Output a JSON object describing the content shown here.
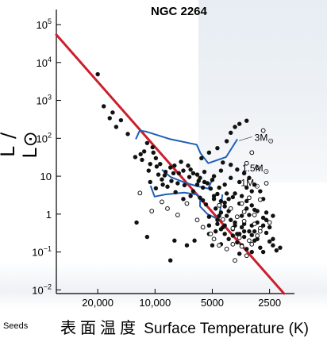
{
  "chart_data": {
    "type": "scatter",
    "title": "NGC 2264",
    "ylabel": "L / L⊙",
    "xlabel_cjk": "表面温度",
    "xlabel": "Surface Temperature  (K)",
    "x_scale": "log",
    "x_direction": "decreasing",
    "xlim": [
      33000,
      1850
    ],
    "y_scale": "log",
    "ylim": [
      0.008,
      250000
    ],
    "x_ticks": [
      {
        "value": 20000,
        "label": "20,000"
      },
      {
        "value": 10000,
        "label": "10,000"
      },
      {
        "value": 5000,
        "label": "5000"
      },
      {
        "value": 2500,
        "label": "2500"
      }
    ],
    "y_ticks": [
      {
        "value": 100000,
        "label": "10",
        "sup": "5"
      },
      {
        "value": 10000,
        "label": "10",
        "sup": "4"
      },
      {
        "value": 1000,
        "label": "10",
        "sup": "3"
      },
      {
        "value": 100,
        "label": "10",
        "sup": "2"
      },
      {
        "value": 10,
        "label": "10",
        "sup": ""
      },
      {
        "value": 1,
        "label": "1",
        "sup": ""
      },
      {
        "value": 0.1,
        "label": "10",
        "sup": "−1"
      },
      {
        "value": 0.01,
        "label": "10",
        "sup": "−2"
      }
    ],
    "main_sequence": {
      "color": "#cc1f2d",
      "points": [
        [
          33000,
          54000
        ],
        [
          2100,
          0.008
        ]
      ]
    },
    "tracks": [
      {
        "name": "3M",
        "color": "#1f5fb8",
        "points": [
          [
            12620,
            95
          ],
          [
            12040,
            160
          ],
          [
            11100,
            150
          ],
          [
            8310,
            95
          ],
          [
            6040,
            68
          ],
          [
            5760,
            40
          ],
          [
            5250,
            22
          ],
          [
            4230,
            32
          ],
          [
            3690,
            95
          ]
        ],
        "label_at": [
          3000,
          110
        ]
      },
      {
        "name": "1.5M",
        "color": "#1f5fb8",
        "points": [
          [
            9200,
            15
          ],
          [
            8310,
            9.6
          ],
          [
            7030,
            6.9
          ],
          [
            6050,
            5.5
          ],
          [
            5250,
            4.7
          ],
          [
            4870,
            11
          ]
        ],
        "label_at": [
          3490,
          17
        ]
      },
      {
        "name": "1M",
        "color": "#1f5fb8",
        "points": [
          [
            10550,
            5.6
          ],
          [
            10050,
            2.9
          ],
          [
            8850,
            3.3
          ],
          [
            7020,
            3.7
          ],
          [
            6060,
            3.3
          ],
          [
            5790,
            2.6
          ],
          [
            5800,
            1.6
          ],
          [
            5300,
            1.0
          ],
          [
            4620,
            0.72
          ],
          [
            4420,
            3.3
          ]
        ],
        "label_at": [
          3540,
          7
        ]
      }
    ],
    "filled_points": [
      [
        20000,
        4900
      ],
      [
        18600,
        700
      ],
      [
        16700,
        480
      ],
      [
        17300,
        340
      ],
      [
        15100,
        300
      ],
      [
        13900,
        130
      ],
      [
        16000,
        200
      ],
      [
        11000,
        75
      ],
      [
        10300,
        58
      ],
      [
        11400,
        45
      ],
      [
        9900,
        30
      ],
      [
        10200,
        42
      ],
      [
        9400,
        21
      ],
      [
        10800,
        14
      ],
      [
        9800,
        18
      ],
      [
        8800,
        13
      ],
      [
        8300,
        17
      ],
      [
        7900,
        19
      ],
      [
        7100,
        14
      ],
      [
        6300,
        12
      ],
      [
        5800,
        9
      ],
      [
        5500,
        7
      ],
      [
        6000,
        6
      ],
      [
        5100,
        4.7
      ],
      [
        4900,
        3
      ],
      [
        4500,
        2.2
      ],
      [
        4300,
        1.6
      ],
      [
        4100,
        1.2
      ],
      [
        4600,
        0.9
      ],
      [
        4000,
        0.7
      ],
      [
        3800,
        0.5
      ],
      [
        3900,
        0.4
      ],
      [
        3600,
        0.3
      ],
      [
        3400,
        0.25
      ],
      [
        3200,
        0.35
      ],
      [
        3000,
        0.2
      ],
      [
        3500,
        0.15
      ],
      [
        3700,
        0.18
      ],
      [
        4100,
        0.22
      ],
      [
        4300,
        0.3
      ],
      [
        3900,
        0.27
      ],
      [
        3300,
        0.12
      ],
      [
        2900,
        0.22
      ],
      [
        3100,
        0.28
      ],
      [
        4700,
        0.55
      ],
      [
        4400,
        0.45
      ],
      [
        4800,
        0.35
      ],
      [
        5200,
        0.5
      ],
      [
        5600,
        2.3
      ],
      [
        6300,
        4
      ],
      [
        7000,
        5.8
      ],
      [
        7800,
        3.8
      ],
      [
        8600,
        5.3
      ],
      [
        9200,
        8.2
      ],
      [
        8900,
        10.5
      ],
      [
        7500,
        12
      ],
      [
        6600,
        9.5
      ],
      [
        5900,
        7.5
      ],
      [
        5300,
        6.5
      ],
      [
        4900,
        10
      ],
      [
        4500,
        14
      ],
      [
        4000,
        140
      ],
      [
        3800,
        200
      ],
      [
        3600,
        240
      ],
      [
        3300,
        290
      ],
      [
        4200,
        84
      ],
      [
        4700,
        55
      ],
      [
        5200,
        42
      ],
      [
        5700,
        30
      ],
      [
        4400,
        23
      ],
      [
        4000,
        20
      ],
      [
        3700,
        15
      ],
      [
        3400,
        12
      ],
      [
        3200,
        9
      ],
      [
        3000,
        6
      ],
      [
        2800,
        4
      ],
      [
        2700,
        2.5
      ],
      [
        3300,
        2.2
      ],
      [
        3600,
        1.9
      ],
      [
        3900,
        2.8
      ],
      [
        4200,
        3.5
      ],
      [
        4900,
        2.5
      ],
      [
        5400,
        1.8
      ],
      [
        4800,
        1.4
      ],
      [
        4500,
        1.1
      ],
      [
        4200,
        0.9
      ],
      [
        3500,
        0.9
      ],
      [
        3200,
        0.95
      ],
      [
        2900,
        0.6
      ],
      [
        2700,
        0.5
      ],
      [
        2600,
        0.32
      ],
      [
        2500,
        0.19
      ],
      [
        2400,
        0.15
      ],
      [
        2300,
        0.11
      ],
      [
        2200,
        0.13
      ],
      [
        2700,
        0.1
      ],
      [
        3100,
        0.1
      ],
      [
        3600,
        0.09
      ],
      [
        4500,
        0.16
      ],
      [
        5000,
        0.15
      ],
      [
        3000,
        0.35
      ],
      [
        6500,
        15
      ],
      [
        7300,
        24
      ],
      [
        8000,
        12
      ],
      [
        9600,
        11
      ],
      [
        10600,
        21
      ],
      [
        11700,
        27
      ],
      [
        12700,
        32
      ],
      [
        11900,
        38
      ],
      [
        6700,
        19
      ],
      [
        6000,
        11
      ],
      [
        5500,
        13
      ],
      [
        5000,
        8
      ],
      [
        4600,
        5
      ],
      [
        4300,
        6
      ],
      [
        4100,
        2.5
      ],
      [
        3800,
        3.5
      ],
      [
        3500,
        3
      ],
      [
        3300,
        1.4
      ],
      [
        3100,
        1.7
      ],
      [
        2900,
        1.2
      ],
      [
        2700,
        0.8
      ],
      [
        2600,
        0.7
      ],
      [
        2500,
        0.45
      ],
      [
        3400,
        0.55
      ],
      [
        3800,
        0.6
      ],
      [
        4300,
        0.5
      ],
      [
        4700,
        0.7
      ],
      [
        5200,
        0.3
      ],
      [
        6200,
        0.2
      ],
      [
        8300,
        0.06
      ],
      [
        12500,
        0.6
      ],
      [
        7900,
        0.2
      ],
      [
        6800,
        0.15
      ],
      [
        11000,
        0.25
      ],
      [
        5600,
        5
      ],
      [
        7600,
        6.5
      ],
      [
        8200,
        7.5
      ],
      [
        9100,
        6
      ],
      [
        9900,
        4.8
      ],
      [
        10600,
        7
      ],
      [
        6500,
        3
      ],
      [
        7100,
        2.5
      ],
      [
        5200,
        0.85
      ],
      [
        4500,
        0.4
      ],
      [
        3700,
        0.3
      ],
      [
        3500,
        0.45
      ],
      [
        3100,
        0.5
      ],
      [
        2800,
        0.13
      ],
      [
        2400,
        0.22
      ],
      [
        4300,
        2
      ],
      [
        4700,
        3.4
      ],
      [
        5800,
        2.7
      ],
      [
        3300,
        5
      ],
      [
        3600,
        7
      ],
      [
        4000,
        9
      ],
      [
        3000,
        1.3
      ],
      [
        2600,
        1.1
      ],
      [
        2400,
        0.9
      ],
      [
        3100,
        4
      ],
      [
        3400,
        0.35
      ]
    ],
    "open_points": [
      [
        10400,
        1.2
      ],
      [
        12000,
        3.6
      ],
      [
        9200,
        2.1
      ],
      [
        8600,
        1.4
      ],
      [
        7600,
        0.95
      ],
      [
        6000,
        0.7
      ],
      [
        5100,
        0.3
      ],
      [
        4600,
        0.15
      ],
      [
        4900,
        0.22
      ],
      [
        4200,
        0.12
      ],
      [
        3800,
        0.06
      ],
      [
        3500,
        0.14
      ],
      [
        3200,
        0.2
      ],
      [
        2900,
        0.27
      ],
      [
        2800,
        0.42
      ],
      [
        3000,
        0.55
      ],
      [
        3400,
        0.65
      ],
      [
        3700,
        0.85
      ],
      [
        4000,
        1.4
      ],
      [
        3500,
        1.9
      ],
      [
        3200,
        2.7
      ],
      [
        3000,
        0.95
      ],
      [
        2800,
        2.4
      ],
      [
        3300,
        22
      ],
      [
        2900,
        17
      ],
      [
        2700,
        160
      ],
      [
        3100,
        42
      ],
      [
        2600,
        6.5
      ],
      [
        3900,
        0.42
      ],
      [
        4400,
        0.72
      ],
      [
        3600,
        0.24
      ],
      [
        3300,
        0.08
      ],
      [
        5600,
        0.45
      ],
      [
        6800,
        1.9
      ],
      [
        2500,
        0.6
      ],
      [
        3400,
        1.15
      ],
      [
        4600,
        1.7
      ],
      [
        2800,
        0.35
      ],
      [
        3100,
        0.16
      ],
      [
        3900,
        0.16
      ]
    ],
    "source_credit": "Seeds"
  }
}
